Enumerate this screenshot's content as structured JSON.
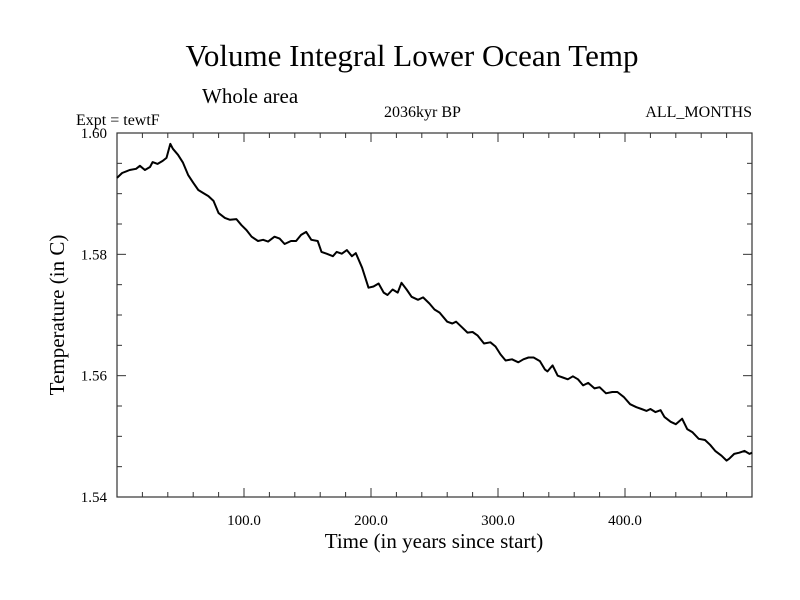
{
  "header": {
    "title": "Volume Integral Lower Ocean Temp",
    "subtitle": "Whole area",
    "experiment": "Expt = tewtF",
    "period": "2036kyr BP",
    "months": "ALL_MONTHS"
  },
  "chart_data": {
    "type": "line",
    "title": "Volume Integral Lower Ocean Temp",
    "subtitle": "Whole area",
    "annotations": [
      "Expt = tewtF",
      "2036kyr BP",
      "ALL_MONTHS"
    ],
    "xlabel": "Time (in years since start)",
    "ylabel": "Temperature (in C)",
    "xlim": [
      0,
      500
    ],
    "ylim": [
      1.54,
      1.6
    ],
    "x_major_ticks": [
      100,
      200,
      300,
      400
    ],
    "x_tick_labels": [
      "100.0",
      "200.0",
      "300.0",
      "400.0"
    ],
    "x_minor_step": 20,
    "y_major_ticks": [
      1.54,
      1.56,
      1.58,
      1.6
    ],
    "y_tick_labels": [
      "1.54",
      "1.56",
      "1.58",
      "1.60"
    ],
    "y_minor_step": 0.005,
    "grid": false,
    "legend": "none",
    "line_color": "#000000",
    "series": [
      {
        "name": "Lower Ocean Temp",
        "points": [
          [
            0,
            1.5926
          ],
          [
            4,
            1.5934
          ],
          [
            10,
            1.5939
          ],
          [
            15,
            1.5941
          ],
          [
            18,
            1.5946
          ],
          [
            22,
            1.5939
          ],
          [
            26,
            1.5944
          ],
          [
            28,
            1.5952
          ],
          [
            32,
            1.5949
          ],
          [
            36,
            1.5954
          ],
          [
            39,
            1.5959
          ],
          [
            42,
            1.5982
          ],
          [
            44,
            1.5974
          ],
          [
            48,
            1.5964
          ],
          [
            52,
            1.5951
          ],
          [
            56,
            1.5931
          ],
          [
            60,
            1.5918
          ],
          [
            64,
            1.5906
          ],
          [
            68,
            1.5901
          ],
          [
            72,
            1.5896
          ],
          [
            76,
            1.5888
          ],
          [
            80,
            1.5868
          ],
          [
            85,
            1.586
          ],
          [
            89,
            1.5857
          ],
          [
            94,
            1.5858
          ],
          [
            98,
            1.5848
          ],
          [
            102,
            1.584
          ],
          [
            106,
            1.5829
          ],
          [
            111,
            1.5822
          ],
          [
            115,
            1.5824
          ],
          [
            119,
            1.5821
          ],
          [
            124,
            1.5829
          ],
          [
            128,
            1.5826
          ],
          [
            132,
            1.5817
          ],
          [
            137,
            1.5822
          ],
          [
            141,
            1.5822
          ],
          [
            145,
            1.5832
          ],
          [
            149,
            1.5837
          ],
          [
            153,
            1.5824
          ],
          [
            158,
            1.5822
          ],
          [
            161,
            1.5804
          ],
          [
            165,
            1.5801
          ],
          [
            170,
            1.5797
          ],
          [
            173,
            1.5804
          ],
          [
            177,
            1.5801
          ],
          [
            181,
            1.5807
          ],
          [
            185,
            1.5797
          ],
          [
            188,
            1.5802
          ],
          [
            193,
            1.5778
          ],
          [
            198,
            1.5745
          ],
          [
            202,
            1.5747
          ],
          [
            206,
            1.5752
          ],
          [
            210,
            1.5737
          ],
          [
            213,
            1.5733
          ],
          [
            217,
            1.5742
          ],
          [
            221,
            1.5737
          ],
          [
            224,
            1.5753
          ],
          [
            228,
            1.5742
          ],
          [
            232,
            1.573
          ],
          [
            237,
            1.5725
          ],
          [
            241,
            1.5729
          ],
          [
            246,
            1.5719
          ],
          [
            250,
            1.5709
          ],
          [
            254,
            1.5704
          ],
          [
            260,
            1.5689
          ],
          [
            264,
            1.5686
          ],
          [
            267,
            1.5689
          ],
          [
            272,
            1.5679
          ],
          [
            276,
            1.5671
          ],
          [
            280,
            1.5672
          ],
          [
            284,
            1.5666
          ],
          [
            289,
            1.5653
          ],
          [
            294,
            1.5655
          ],
          [
            298,
            1.5648
          ],
          [
            302,
            1.5635
          ],
          [
            306,
            1.5625
          ],
          [
            311,
            1.5627
          ],
          [
            316,
            1.5622
          ],
          [
            320,
            1.5627
          ],
          [
            324,
            1.563
          ],
          [
            328,
            1.563
          ],
          [
            333,
            1.5624
          ],
          [
            337,
            1.561
          ],
          [
            339,
            1.5607
          ],
          [
            343,
            1.5617
          ],
          [
            347,
            1.56
          ],
          [
            351,
            1.5597
          ],
          [
            355,
            1.5594
          ],
          [
            359,
            1.5599
          ],
          [
            363,
            1.5594
          ],
          [
            367,
            1.5584
          ],
          [
            371,
            1.5588
          ],
          [
            376,
            1.5579
          ],
          [
            380,
            1.5581
          ],
          [
            385,
            1.5571
          ],
          [
            390,
            1.5573
          ],
          [
            394,
            1.5573
          ],
          [
            399,
            1.5565
          ],
          [
            404,
            1.5553
          ],
          [
            409,
            1.5548
          ],
          [
            413,
            1.5545
          ],
          [
            417,
            1.5542
          ],
          [
            420,
            1.5545
          ],
          [
            424,
            1.554
          ],
          [
            428,
            1.5543
          ],
          [
            431,
            1.5532
          ],
          [
            436,
            1.5524
          ],
          [
            440,
            1.552
          ],
          [
            445,
            1.5529
          ],
          [
            449,
            1.5512
          ],
          [
            453,
            1.5507
          ],
          [
            458,
            1.5496
          ],
          [
            463,
            1.5494
          ],
          [
            467,
            1.5486
          ],
          [
            471,
            1.5476
          ],
          [
            476,
            1.5468
          ],
          [
            480,
            1.546
          ],
          [
            482,
            1.5463
          ],
          [
            486,
            1.5471
          ],
          [
            490,
            1.5473
          ],
          [
            494,
            1.5476
          ],
          [
            498,
            1.5471
          ],
          [
            500,
            1.5473
          ]
        ]
      }
    ]
  }
}
